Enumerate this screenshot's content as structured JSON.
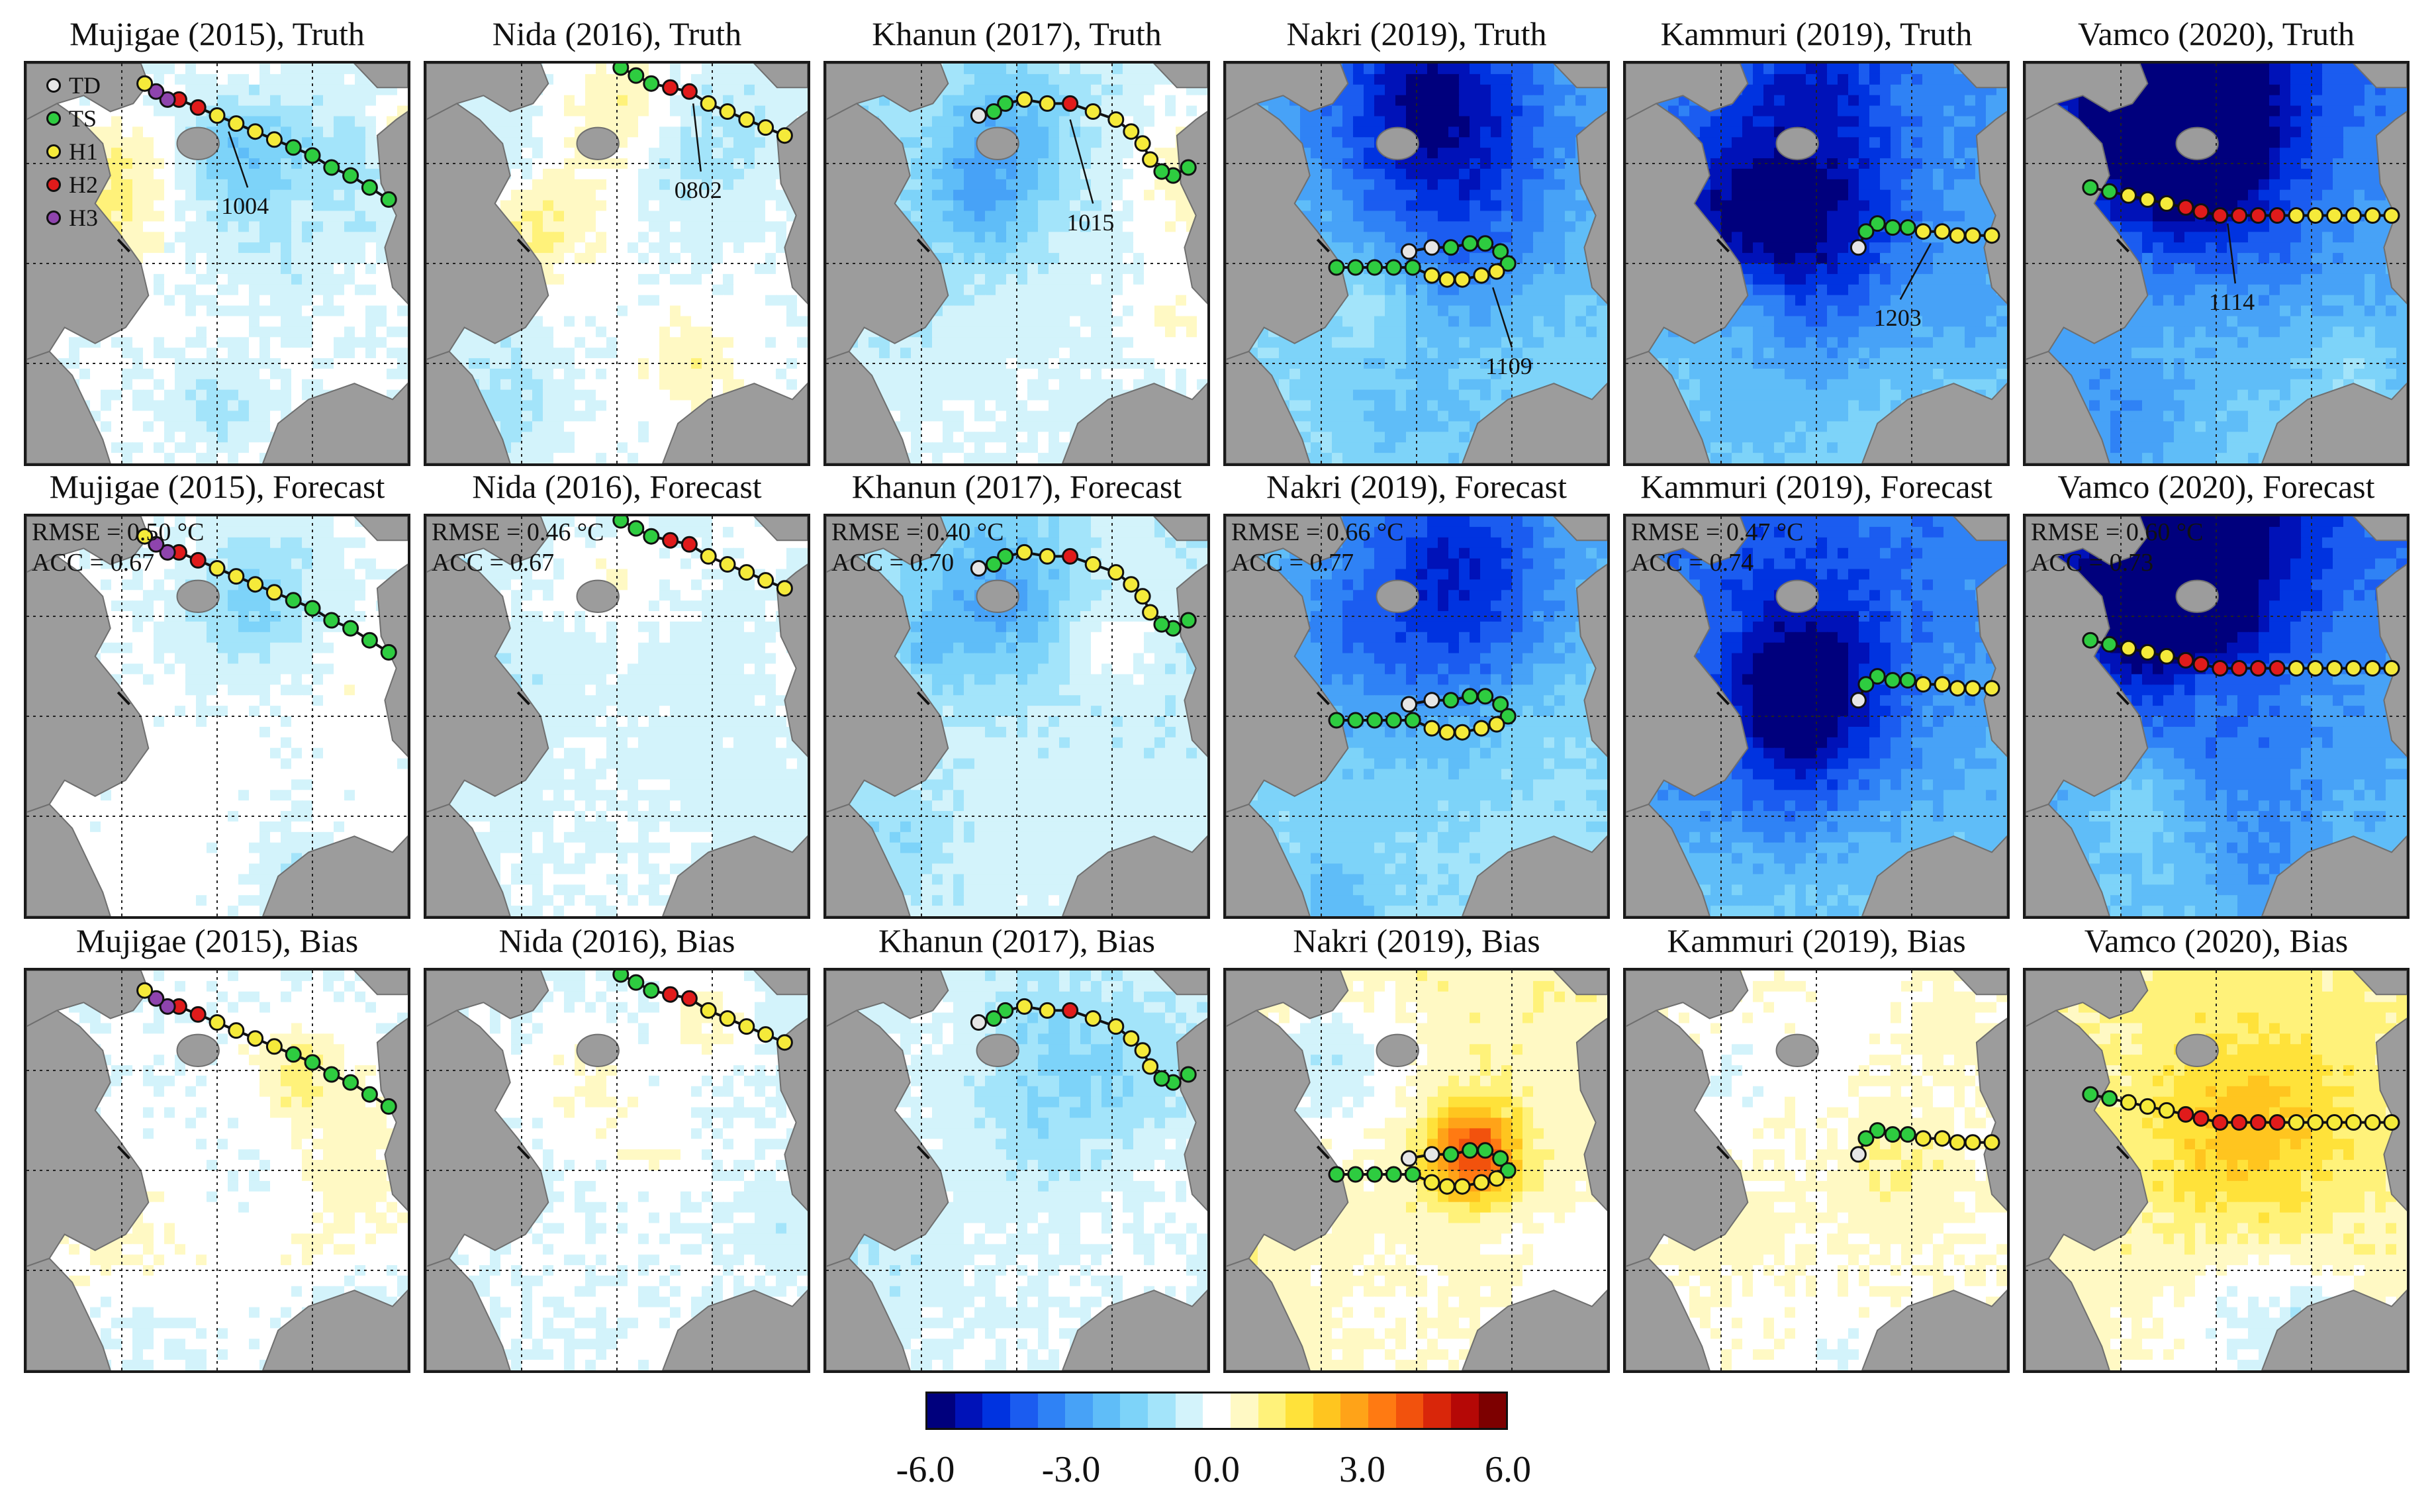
{
  "figure": {
    "rows": [
      "Truth",
      "Forecast",
      "Bias"
    ]
  },
  "chart_data": {
    "type": "heatmap",
    "description_units": "°C",
    "panels": [
      {
        "storm": "Mujigae",
        "year": 2015,
        "row": "Truth",
        "title": "Mujigae (2015), Truth"
      },
      {
        "storm": "Nida",
        "year": 2016,
        "row": "Truth",
        "title": "Nida (2016), Truth"
      },
      {
        "storm": "Khanun",
        "year": 2017,
        "row": "Truth",
        "title": "Khanun (2017), Truth"
      },
      {
        "storm": "Nakri",
        "year": 2019,
        "row": "Truth",
        "title": "Nakri (2019), Truth"
      },
      {
        "storm": "Kammuri",
        "year": 2019,
        "row": "Truth",
        "title": "Kammuri (2019), Truth"
      },
      {
        "storm": "Vamco",
        "year": 2020,
        "row": "Truth",
        "title": "Vamco (2020), Truth"
      },
      {
        "storm": "Mujigae",
        "year": 2015,
        "row": "Forecast",
        "title": "Mujigae (2015), Forecast",
        "rmse": "RMSE = 0.50 °C",
        "acc": "ACC = 0.67"
      },
      {
        "storm": "Nida",
        "year": 2016,
        "row": "Forecast",
        "title": "Nida (2016), Forecast",
        "rmse": "RMSE = 0.46 °C",
        "acc": "ACC = 0.67"
      },
      {
        "storm": "Khanun",
        "year": 2017,
        "row": "Forecast",
        "title": "Khanun (2017), Forecast",
        "rmse": "RMSE = 0.40 °C",
        "acc": "ACC = 0.70"
      },
      {
        "storm": "Nakri",
        "year": 2019,
        "row": "Forecast",
        "title": "Nakri (2019), Forecast",
        "rmse": "RMSE = 0.66 °C",
        "acc": "ACC = 0.77"
      },
      {
        "storm": "Kammuri",
        "year": 2019,
        "row": "Forecast",
        "title": "Kammuri (2019), Forecast",
        "rmse": "RMSE = 0.47 °C",
        "acc": "ACC = 0.74"
      },
      {
        "storm": "Vamco",
        "year": 2020,
        "row": "Forecast",
        "title": "Vamco (2020), Forecast",
        "rmse": "RMSE = 0.60 °C",
        "acc": "ACC = 0.73"
      },
      {
        "storm": "Mujigae",
        "year": 2015,
        "row": "Bias",
        "title": "Mujigae (2015), Bias"
      },
      {
        "storm": "Nida",
        "year": 2016,
        "row": "Bias",
        "title": "Nida (2016), Bias"
      },
      {
        "storm": "Khanun",
        "year": 2017,
        "row": "Bias",
        "title": "Khanun (2017), Bias"
      },
      {
        "storm": "Nakri",
        "year": 2019,
        "row": "Bias",
        "title": "Nakri (2019), Bias"
      },
      {
        "storm": "Kammuri",
        "year": 2019,
        "row": "Bias",
        "title": "Kammuri (2019), Bias"
      },
      {
        "storm": "Vamco",
        "year": 2020,
        "row": "Bias",
        "title": "Vamco (2020), Bias"
      }
    ],
    "track_annotations": [
      {
        "storm": "Mujigae",
        "label": "1004"
      },
      {
        "storm": "Nida",
        "label": "0802"
      },
      {
        "storm": "Khanun",
        "label": "1015"
      },
      {
        "storm": "Nakri",
        "label": "1109"
      },
      {
        "storm": "Kammuri",
        "label": "1203"
      },
      {
        "storm": "Vamco",
        "label": "1114"
      }
    ],
    "legend": {
      "placement": "top-left of first panel",
      "entries": [
        {
          "label": "TD",
          "color": "#e6e6e6"
        },
        {
          "label": "TS",
          "color": "#2ecc40"
        },
        {
          "label": "H1",
          "color": "#f5ea3a"
        },
        {
          "label": "H2",
          "color": "#e01b1b"
        },
        {
          "label": "H3",
          "color": "#8e44ad"
        }
      ]
    },
    "colorbar": {
      "range": [
        -6.0,
        6.0
      ],
      "tick_labels": [
        "-6.0",
        "-3.0",
        "0.0",
        "3.0",
        "6.0"
      ],
      "colors": [
        "#00007d",
        "#0012b8",
        "#0033e0",
        "#1b5cf0",
        "#2f82f5",
        "#47a2f7",
        "#5fbdf8",
        "#7dd3f9",
        "#a3e4fa",
        "#d3f3fb",
        "#ffffff",
        "#fff9c4",
        "#fff27a",
        "#ffe23a",
        "#ffc51f",
        "#ffa318",
        "#ff7a12",
        "#f2520d",
        "#d9260a",
        "#b50806",
        "#7d0000"
      ]
    }
  }
}
